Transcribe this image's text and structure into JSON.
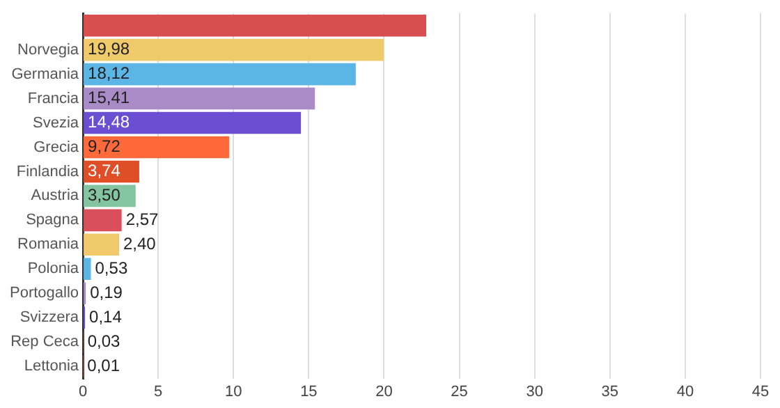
{
  "chart_data": {
    "type": "bar",
    "orientation": "horizontal",
    "categories": [
      null,
      "Norvegia",
      "Germania",
      "Francia",
      "Svezia",
      "Grecia",
      "Finlandia",
      "Austria",
      "Spagna",
      "Romania",
      "Polonia",
      "Portogallo",
      "Svizzera",
      "Rep Ceca",
      "Lettonia"
    ],
    "values": [
      22.8,
      19.98,
      18.12,
      15.41,
      14.48,
      9.72,
      3.74,
      3.5,
      2.57,
      2.4,
      0.53,
      0.19,
      0.14,
      0.03,
      0.01
    ],
    "value_labels": [
      null,
      "19,98",
      "18,12",
      "15,41",
      "14,48",
      "9,72",
      "3,74",
      "3,50",
      "2,57",
      "2,40",
      "0,53",
      "0,19",
      "0,14",
      "0,03",
      "0,01"
    ],
    "colors": [
      "#d94f4f",
      "#f0c96a",
      "#5bb5e5",
      "#a98bc7",
      "#6a4fd3",
      "#ff6a3a",
      "#e04e28",
      "#84c4a0",
      "#d9505a",
      "#f0c96a",
      "#5bb5e5",
      "#a98bc7",
      "#6a4fd3",
      "#ff6a3a",
      "#e04e28"
    ],
    "xlim": [
      0,
      45
    ],
    "xticks": [
      0,
      5,
      10,
      15,
      20,
      25,
      30,
      35,
      40,
      45
    ],
    "grid": "x",
    "legend": false
  }
}
